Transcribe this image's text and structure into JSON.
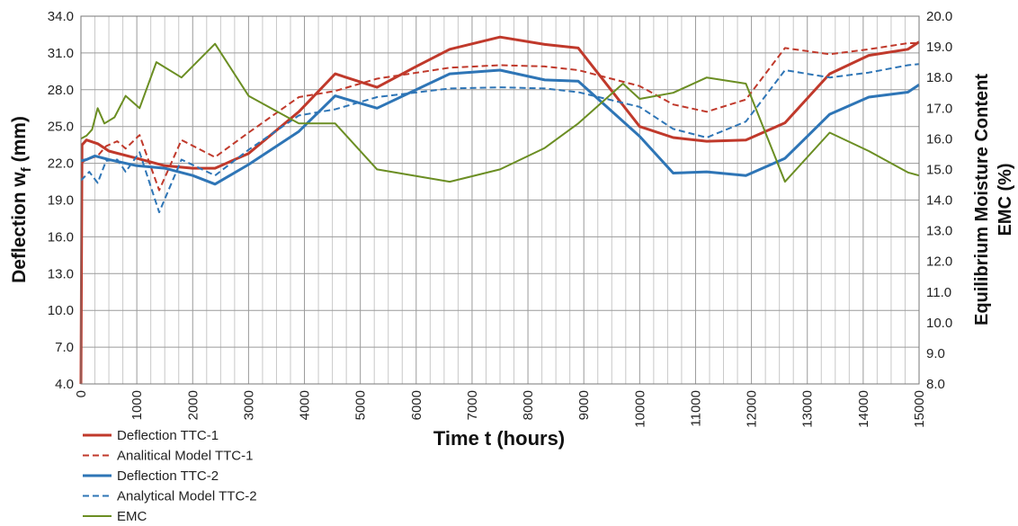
{
  "chart_data": {
    "type": "line",
    "xlabel": "Time t (hours)",
    "ylabel": "Deflection w",
    "ylabel_sub": "f",
    "ylabel_unit": " (mm)",
    "y2label_line1": "Equilibrium Moisture Content",
    "y2label_line2": "EMC (%)",
    "xlim": [
      0,
      15000
    ],
    "ylim": [
      4.0,
      34.0
    ],
    "y2lim": [
      8.0,
      20.0
    ],
    "xticks": [
      0,
      1000,
      2000,
      3000,
      4000,
      5000,
      6000,
      7000,
      8000,
      9000,
      10000,
      11000,
      12000,
      13000,
      14000,
      15000
    ],
    "yticks": [
      "4.0",
      "7.0",
      "10.0",
      "13.0",
      "16.0",
      "19.0",
      "22.0",
      "25.0",
      "28.0",
      "31.0",
      "34.0"
    ],
    "y2ticks": [
      "8.0",
      "9.0",
      "10.0",
      "11.0",
      "12.0",
      "13.0",
      "14.0",
      "15.0",
      "16.0",
      "17.0",
      "18.0",
      "19.0",
      "20.0"
    ],
    "grid": true,
    "legend_position": "bottom-left",
    "series": [
      {
        "name": "Deflection TTC-1",
        "axis": "left",
        "color": "#c0392b",
        "dash": "solid",
        "width": 3,
        "x": [
          0,
          20,
          100,
          300,
          500,
          1000,
          1500,
          2000,
          2400,
          3000,
          3900,
          4550,
          5300,
          6000,
          6600,
          7500,
          8300,
          8900,
          10000,
          10600,
          11200,
          11900,
          12600,
          13400,
          14100,
          14800,
          15000
        ],
        "y": [
          4.0,
          23.5,
          23.9,
          23.6,
          23.0,
          22.4,
          21.8,
          21.6,
          21.6,
          22.8,
          26.2,
          29.3,
          28.2,
          29.9,
          31.3,
          32.3,
          31.7,
          31.4,
          25.0,
          24.1,
          23.8,
          23.9,
          25.3,
          29.3,
          30.8,
          31.3,
          31.9
        ]
      },
      {
        "name": "Analitical Model TTC-1",
        "axis": "left",
        "color": "#c0392b",
        "dash": "dashed",
        "width": 2,
        "x": [
          0,
          100,
          300,
          450,
          650,
          800,
          1050,
          1400,
          1800,
          2400,
          3000,
          3900,
          4550,
          5300,
          6600,
          7500,
          8300,
          8900,
          10000,
          10600,
          11200,
          11900,
          12600,
          13400,
          14100,
          14800,
          15000
        ],
        "y": [
          22.0,
          22.3,
          22.6,
          23.4,
          23.8,
          23.2,
          24.3,
          19.8,
          23.9,
          22.5,
          24.5,
          27.4,
          27.9,
          28.9,
          29.8,
          30.0,
          29.9,
          29.6,
          28.3,
          26.8,
          26.2,
          27.2,
          31.4,
          30.9,
          31.3,
          31.8,
          31.8
        ]
      },
      {
        "name": "Deflection TTC-2",
        "axis": "left",
        "color": "#2e75b6",
        "dash": "solid",
        "width": 3,
        "x": [
          0,
          100,
          250,
          500,
          1000,
          1500,
          2000,
          2400,
          3000,
          3900,
          4550,
          5300,
          6600,
          7500,
          8300,
          8900,
          10000,
          10600,
          11200,
          11900,
          12600,
          13400,
          14100,
          14800,
          15000
        ],
        "y": [
          22.2,
          22.3,
          22.6,
          22.3,
          21.8,
          21.6,
          21.0,
          20.3,
          21.9,
          24.6,
          27.5,
          26.5,
          29.3,
          29.6,
          28.8,
          28.7,
          24.2,
          21.2,
          21.3,
          21.0,
          22.4,
          26.0,
          27.4,
          27.8,
          28.4
        ]
      },
      {
        "name": "Analytical Model TTC-2",
        "axis": "left",
        "color": "#2e75b6",
        "dash": "dashed",
        "width": 2,
        "x": [
          0,
          150,
          300,
          450,
          650,
          800,
          1050,
          1400,
          1800,
          2400,
          3000,
          3900,
          4550,
          5300,
          6600,
          7500,
          8300,
          8900,
          10000,
          10600,
          11200,
          11900,
          12600,
          13400,
          14100,
          14800,
          15000
        ],
        "y": [
          20.6,
          21.3,
          20.4,
          22.2,
          22.3,
          21.3,
          22.9,
          18.0,
          22.3,
          21.0,
          23.1,
          25.9,
          26.4,
          27.4,
          28.1,
          28.2,
          28.1,
          27.8,
          26.6,
          24.8,
          24.1,
          25.4,
          29.6,
          29.0,
          29.4,
          30.0,
          30.1
        ]
      },
      {
        "name": "EMC",
        "axis": "right",
        "color": "#6b8e23",
        "dash": "solid",
        "width": 2,
        "x": [
          0,
          100,
          200,
          300,
          420,
          600,
          800,
          1050,
          1350,
          1800,
          2400,
          3000,
          3900,
          4550,
          5300,
          6600,
          7500,
          8300,
          8900,
          9700,
          10000,
          10600,
          11200,
          11900,
          12600,
          13400,
          14100,
          14800,
          15000
        ],
        "y": [
          16.0,
          16.1,
          16.3,
          17.0,
          16.5,
          16.7,
          17.4,
          17.0,
          18.5,
          18.0,
          19.1,
          17.4,
          16.5,
          16.5,
          15.0,
          14.6,
          15.0,
          15.7,
          16.5,
          17.8,
          17.3,
          17.5,
          18.0,
          17.8,
          14.6,
          16.2,
          15.6,
          14.9,
          14.8
        ]
      }
    ]
  }
}
